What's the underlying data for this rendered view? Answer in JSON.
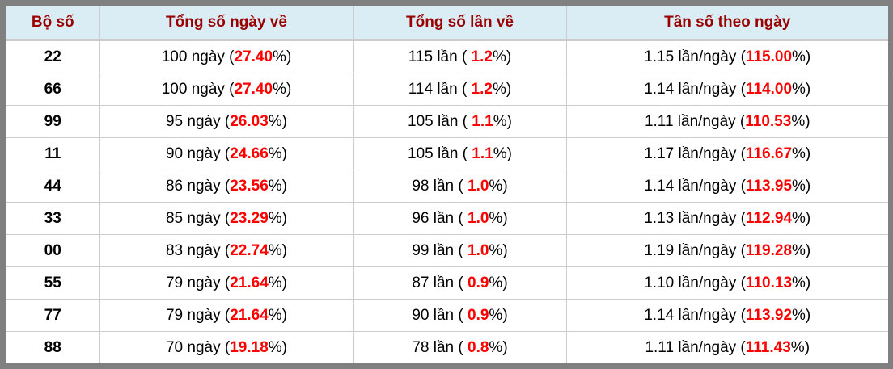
{
  "headers": [
    "Bộ số",
    "Tổng số ngày về",
    "Tổng số lần về",
    "Tần số theo ngày"
  ],
  "units": {
    "days": "ngày",
    "times": "lần",
    "per_day": "lần/ngày"
  },
  "rows": [
    {
      "pair": "22",
      "days": "100",
      "days_pct": "27.40",
      "times": "115",
      "times_pct": "1.2",
      "freq": "1.15",
      "freq_pct": "115.00"
    },
    {
      "pair": "66",
      "days": "100",
      "days_pct": "27.40",
      "times": "114",
      "times_pct": "1.2",
      "freq": "1.14",
      "freq_pct": "114.00"
    },
    {
      "pair": "99",
      "days": "95",
      "days_pct": "26.03",
      "times": "105",
      "times_pct": "1.1",
      "freq": "1.11",
      "freq_pct": "110.53"
    },
    {
      "pair": "11",
      "days": "90",
      "days_pct": "24.66",
      "times": "105",
      "times_pct": "1.1",
      "freq": "1.17",
      "freq_pct": "116.67"
    },
    {
      "pair": "44",
      "days": "86",
      "days_pct": "23.56",
      "times": "98",
      "times_pct": "1.0",
      "freq": "1.14",
      "freq_pct": "113.95"
    },
    {
      "pair": "33",
      "days": "85",
      "days_pct": "23.29",
      "times": "96",
      "times_pct": "1.0",
      "freq": "1.13",
      "freq_pct": "112.94"
    },
    {
      "pair": "00",
      "days": "83",
      "days_pct": "22.74",
      "times": "99",
      "times_pct": "1.0",
      "freq": "1.19",
      "freq_pct": "119.28"
    },
    {
      "pair": "55",
      "days": "79",
      "days_pct": "21.64",
      "times": "87",
      "times_pct": "0.9",
      "freq": "1.10",
      "freq_pct": "110.13"
    },
    {
      "pair": "77",
      "days": "79",
      "days_pct": "21.64",
      "times": "90",
      "times_pct": "0.9",
      "freq": "1.14",
      "freq_pct": "113.92"
    },
    {
      "pair": "88",
      "days": "70",
      "days_pct": "19.18",
      "times": "78",
      "times_pct": "0.8",
      "freq": "1.11",
      "freq_pct": "111.43"
    }
  ],
  "colors": {
    "header_bg": "#daedf5",
    "header_text": "#9b0000",
    "highlight": "#ff0000",
    "frame": "#808080"
  }
}
